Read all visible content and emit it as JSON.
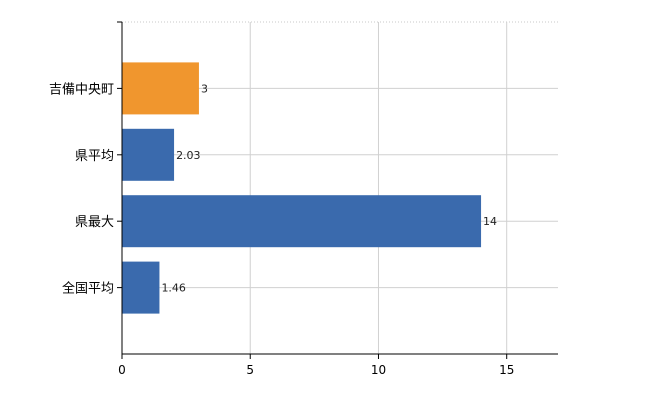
{
  "chart_data": {
    "type": "bar",
    "orientation": "horizontal",
    "categories": [
      "吉備中央町",
      "県平均",
      "県最大",
      "全国平均"
    ],
    "values": [
      3,
      2.03,
      14,
      1.46
    ],
    "value_labels": [
      "3",
      "2.03",
      "14",
      "1.46"
    ],
    "bar_colors": [
      "#f0962e",
      "#3a6aad",
      "#3a6aad",
      "#3a6aad"
    ],
    "xlim": [
      0,
      17
    ],
    "xticks": [
      0,
      5,
      10,
      15
    ],
    "xtick_labels": [
      "0",
      "5",
      "10",
      "15"
    ],
    "grid": true,
    "legend": "none",
    "title": "",
    "xlabel": "",
    "ylabel": ""
  }
}
